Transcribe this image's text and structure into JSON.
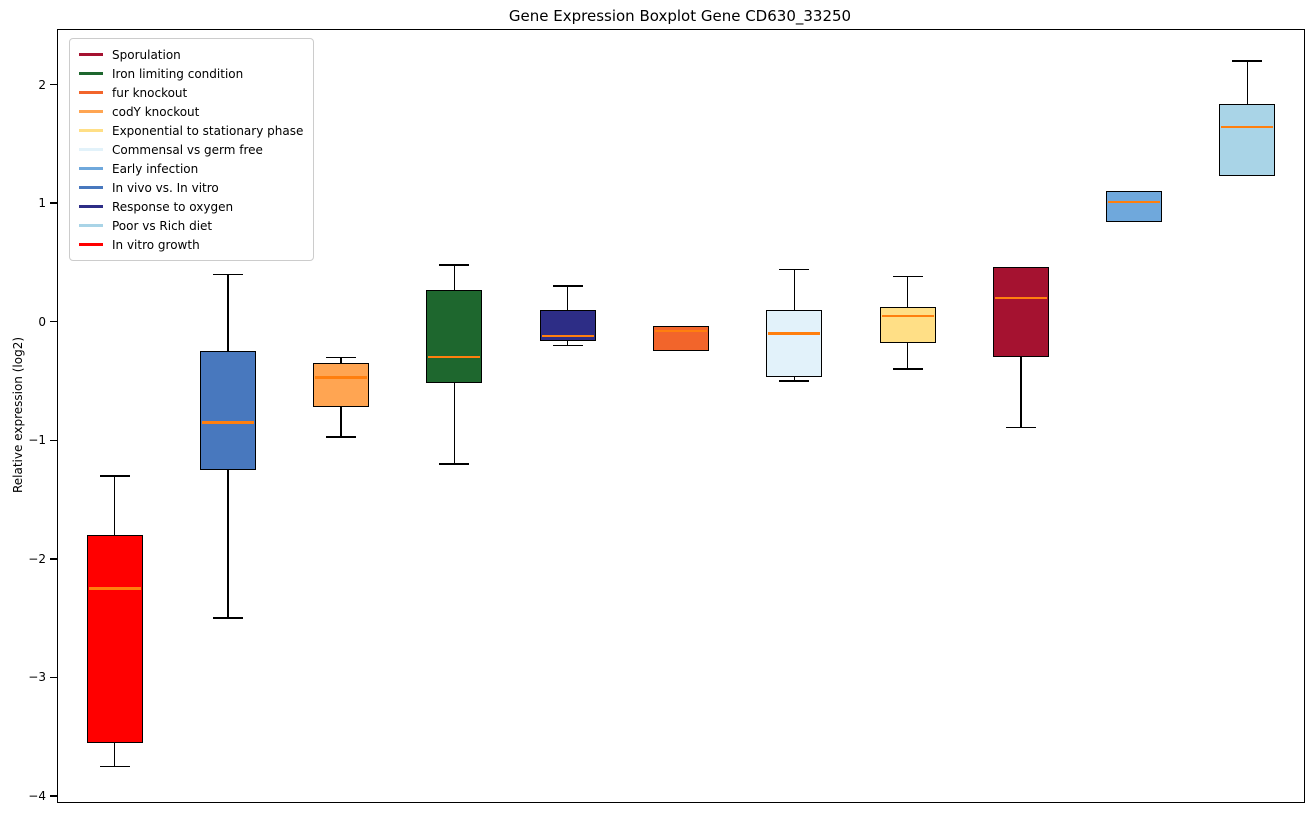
{
  "chart_data": {
    "type": "boxplot",
    "title": "Gene Expression Boxplot Gene CD630_33250",
    "xlabel": "",
    "ylabel": "Relative expression (log2)",
    "ylim": [
      -4.05,
      2.46
    ],
    "yticks": [
      -4,
      -3,
      -2,
      -1,
      0,
      1,
      2
    ],
    "grid": false,
    "legend_position": "upper left",
    "median_color": "#FF7F0E",
    "box_edge_color": "#000000",
    "series": [
      {
        "name": "In vitro growth",
        "color": "#FF0000",
        "whisker_low": -3.75,
        "q1": -3.55,
        "median": -2.25,
        "q3": -1.8,
        "whisker_high": -1.3
      },
      {
        "name": "In vivo vs. In vitro",
        "color": "#4878BE",
        "whisker_low": -2.5,
        "q1": -1.25,
        "median": -0.85,
        "q3": -0.25,
        "whisker_high": 0.4
      },
      {
        "name": "codY knockout",
        "color": "#FFA552",
        "whisker_low": -0.97,
        "q1": -0.72,
        "median": -0.47,
        "q3": -0.35,
        "whisker_high": -0.3
      },
      {
        "name": "Iron limiting condition",
        "color": "#1E672E",
        "whisker_low": -1.2,
        "q1": -0.52,
        "median": -0.3,
        "q3": 0.27,
        "whisker_high": 0.48
      },
      {
        "name": "Response to oxygen",
        "color": "#2D2D86",
        "whisker_low": -0.2,
        "q1": -0.16,
        "median": -0.12,
        "q3": 0.1,
        "whisker_high": 0.3
      },
      {
        "name": "fur knockout",
        "color": "#F2652B",
        "whisker_low": -0.25,
        "q1": -0.25,
        "median": -0.08,
        "q3": -0.04,
        "whisker_high": -0.04
      },
      {
        "name": "Commensal vs germ free",
        "color": "#E2F2FA",
        "whisker_low": -0.5,
        "q1": -0.47,
        "median": -0.1,
        "q3": 0.1,
        "whisker_high": 0.44
      },
      {
        "name": "Exponential to stationary phase",
        "color": "#FFDF86",
        "whisker_low": -0.4,
        "q1": -0.18,
        "median": 0.05,
        "q3": 0.12,
        "whisker_high": 0.38
      },
      {
        "name": "Sporulation",
        "color": "#A51230",
        "whisker_low": -0.89,
        "q1": -0.3,
        "median": 0.2,
        "q3": 0.46,
        "whisker_high": 0.46
      },
      {
        "name": "Early infection",
        "color": "#6FA8DC",
        "whisker_low": 0.84,
        "q1": 0.84,
        "median": 1.01,
        "q3": 1.1,
        "whisker_high": 1.1
      },
      {
        "name": "Poor vs Rich diet",
        "color": "#A9D4E7",
        "whisker_low": 1.23,
        "q1": 1.23,
        "median": 1.64,
        "q3": 1.84,
        "whisker_high": 2.2
      }
    ]
  },
  "legend": {
    "items": [
      {
        "label": "Sporulation",
        "color": "#A51230"
      },
      {
        "label": "Iron limiting condition",
        "color": "#1E672E"
      },
      {
        "label": "fur knockout",
        "color": "#F2652B"
      },
      {
        "label": "codY knockout",
        "color": "#FFA552"
      },
      {
        "label": "Exponential to stationary phase",
        "color": "#FFDF86"
      },
      {
        "label": "Commensal vs germ free",
        "color": "#E2F2FA"
      },
      {
        "label": "Early infection",
        "color": "#6FA8DC"
      },
      {
        "label": "In vivo vs. In vitro",
        "color": "#4878BE"
      },
      {
        "label": "Response to oxygen",
        "color": "#2D2D86"
      },
      {
        "label": "Poor vs Rich diet",
        "color": "#A9D4E7"
      },
      {
        "label": "In vitro growth",
        "color": "#FF0000"
      }
    ]
  }
}
